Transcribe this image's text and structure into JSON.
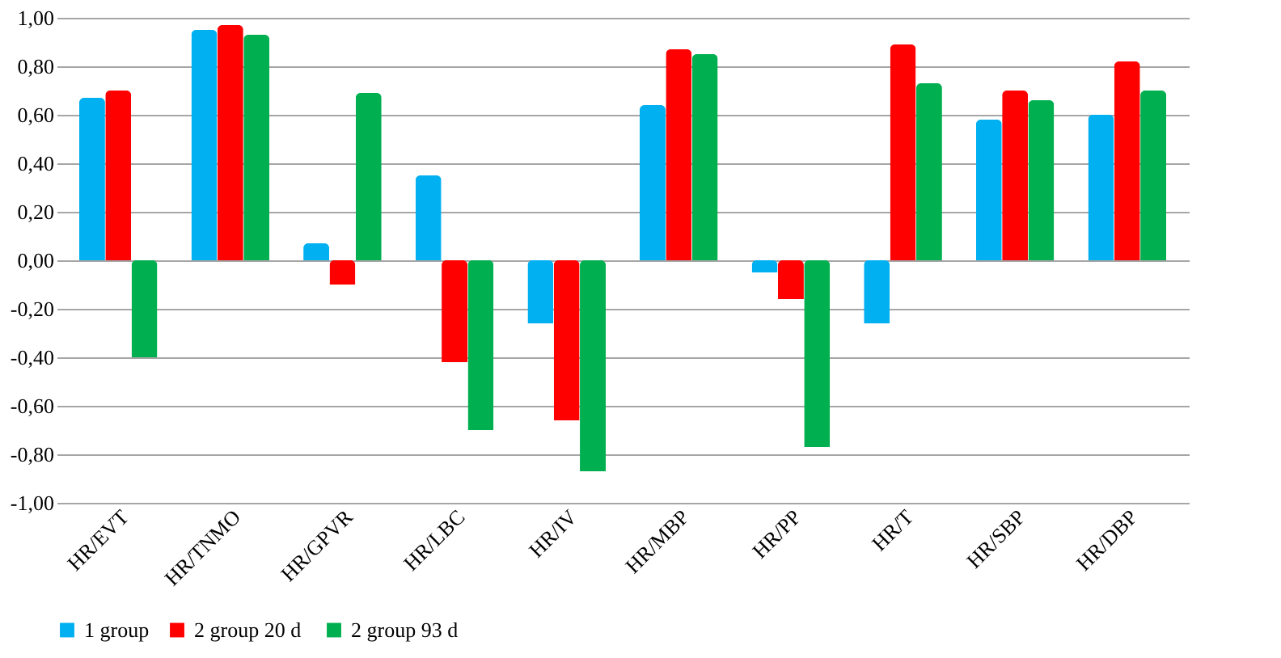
{
  "chart_data": {
    "type": "bar",
    "categories": [
      "HR/EVT",
      "HR/TNMO",
      "HR/GPVR",
      "HR/LBC",
      "HR/IV",
      "HR/MBP",
      "HR/PP",
      "HR/T",
      "HR/SBP",
      "HR/DBP"
    ],
    "series": [
      {
        "name": "1 group",
        "color": "#00b0f0",
        "values": [
          0.67,
          0.95,
          0.07,
          0.35,
          -0.26,
          0.64,
          -0.05,
          -0.26,
          0.58,
          0.6
        ]
      },
      {
        "name": "2  group 20 d",
        "color": "#ff0000",
        "values": [
          0.7,
          0.97,
          -0.1,
          -0.42,
          -0.66,
          0.87,
          -0.16,
          0.89,
          0.7,
          0.82
        ]
      },
      {
        "name": "2 group 93 d",
        "color": "#00b050",
        "values": [
          -0.4,
          0.93,
          0.69,
          -0.7,
          -0.87,
          0.85,
          -0.77,
          0.73,
          0.66,
          0.7
        ]
      }
    ],
    "ylim": [
      -1.0,
      1.0
    ],
    "yticks": [
      {
        "value": -1.0,
        "label": "-1,00"
      },
      {
        "value": -0.8,
        "label": "-0,80"
      },
      {
        "value": -0.6,
        "label": "-0,60"
      },
      {
        "value": -0.4,
        "label": "-0,40"
      },
      {
        "value": -0.2,
        "label": "-0,20"
      },
      {
        "value": 0,
        "label": "0,00"
      },
      {
        "value": 0.2,
        "label": "0,20"
      },
      {
        "value": 0.4,
        "label": "0,40"
      },
      {
        "value": 0.6,
        "label": "0,60"
      },
      {
        "value": 0.8,
        "label": "0,80"
      },
      {
        "value": 1.0,
        "label": "1,00"
      }
    ],
    "grid": "y",
    "legend": "bottom"
  }
}
